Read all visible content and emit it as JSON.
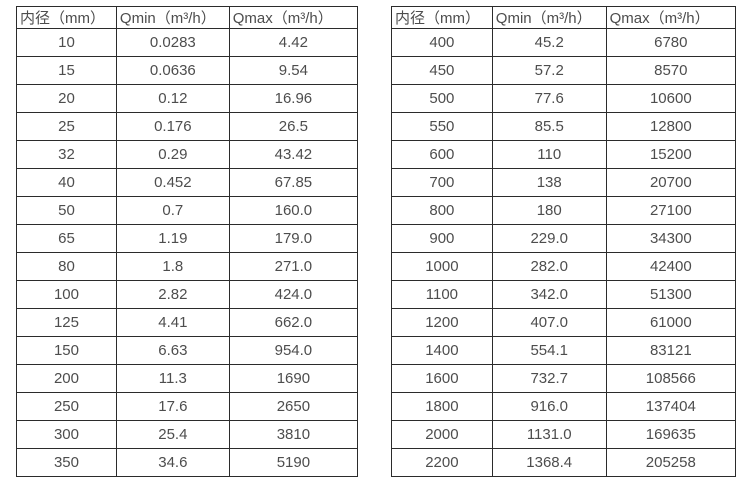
{
  "colors": {
    "background": "#ffffff",
    "border": "#2b2b2b",
    "text": "#4d4d4d"
  },
  "tables": [
    {
      "name": "flow-spec-table-small-diameters",
      "headers": [
        "内径（mm）",
        "Qmin（m³/h）",
        "Qmax（m³/h）"
      ],
      "rows": [
        [
          "10",
          "0.0283",
          "4.42"
        ],
        [
          "15",
          "0.0636",
          "9.54"
        ],
        [
          "20",
          "0.12",
          "16.96"
        ],
        [
          "25",
          "0.176",
          "26.5"
        ],
        [
          "32",
          "0.29",
          "43.42"
        ],
        [
          "40",
          "0.452",
          "67.85"
        ],
        [
          "50",
          "0.7",
          "160.0"
        ],
        [
          "65",
          "1.19",
          "179.0"
        ],
        [
          "80",
          "1.8",
          "271.0"
        ],
        [
          "100",
          "2.82",
          "424.0"
        ],
        [
          "125",
          "4.41",
          "662.0"
        ],
        [
          "150",
          "6.63",
          "954.0"
        ],
        [
          "200",
          "11.3",
          "1690"
        ],
        [
          "250",
          "17.6",
          "2650"
        ],
        [
          "300",
          "25.4",
          "3810"
        ],
        [
          "350",
          "34.6",
          "5190"
        ]
      ]
    },
    {
      "name": "flow-spec-table-large-diameters",
      "headers": [
        "内径（mm）",
        "Qmin（m³/h）",
        "Qmax（m³/h）"
      ],
      "rows": [
        [
          "400",
          "45.2",
          "6780"
        ],
        [
          "450",
          "57.2",
          "8570"
        ],
        [
          "500",
          "77.6",
          "10600"
        ],
        [
          "550",
          "85.5",
          "12800"
        ],
        [
          "600",
          "110",
          "15200"
        ],
        [
          "700",
          "138",
          "20700"
        ],
        [
          "800",
          "180",
          "27100"
        ],
        [
          "900",
          "229.0",
          "34300"
        ],
        [
          "1000",
          "282.0",
          "42400"
        ],
        [
          "1100",
          "342.0",
          "51300"
        ],
        [
          "1200",
          "407.0",
          "61000"
        ],
        [
          "1400",
          "554.1",
          "83121"
        ],
        [
          "1600",
          "732.7",
          "108566"
        ],
        [
          "1800",
          "916.0",
          "137404"
        ],
        [
          "2000",
          "1131.0",
          "169635"
        ],
        [
          "2200",
          "1368.4",
          "205258"
        ]
      ]
    }
  ]
}
